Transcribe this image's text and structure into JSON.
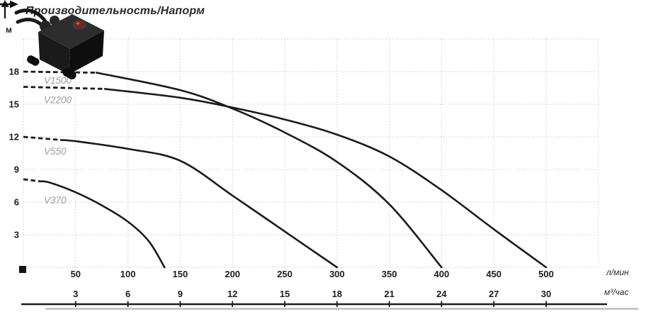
{
  "title": "Производительность/Напорм",
  "y_axis": {
    "unit_label": "м"
  },
  "x_axis_flow": {
    "unit_label": "л/мин"
  },
  "x_axis_volume": {
    "unit_label": "м³/час"
  },
  "colors": {
    "curve": "#1b1b1b",
    "grid": "#cbcbcb",
    "curve_label": "#9c9c9c",
    "axis_text": "#1d1d1d",
    "axis_shadow": "#bdbdbd",
    "pump_button_red": "#7e201a"
  },
  "chart_data": {
    "type": "line",
    "title": "Производительность/Напорм",
    "ylabel": "м",
    "xlabel_primary": "л/мин",
    "xlabel_secondary": "м³/час",
    "x_range_lmin": [
      0,
      550
    ],
    "y_range_m": [
      0,
      21
    ],
    "y_ticks_m": [
      3,
      6,
      9,
      12,
      15,
      18
    ],
    "x_ticks_lmin": [
      50,
      100,
      150,
      200,
      250,
      300,
      350,
      400,
      450,
      500
    ],
    "x_ticks_m3h": [
      3,
      6,
      9,
      12,
      15,
      18,
      21,
      24,
      27,
      30
    ],
    "grid": "dotted",
    "legend_position": "inline-labels",
    "series": [
      {
        "name": "V370",
        "dash_until": 16,
        "label_dy": 34,
        "points": [
          [
            0,
            8.1
          ],
          [
            25,
            7.8
          ],
          [
            50,
            6.9
          ],
          [
            75,
            5.7
          ],
          [
            100,
            4.2
          ],
          [
            120,
            2.4
          ],
          [
            135,
            0
          ]
        ]
      },
      {
        "name": "V550",
        "dash_until": 36,
        "label_dy": 25,
        "points": [
          [
            0,
            12
          ],
          [
            50,
            11.6
          ],
          [
            100,
            10.9
          ],
          [
            150,
            9.8
          ],
          [
            200,
            6.6
          ],
          [
            250,
            3.3
          ],
          [
            300,
            0
          ]
        ]
      },
      {
        "name": "V1500",
        "dash_until": 70,
        "label_dy": 17,
        "points": [
          [
            0,
            18
          ],
          [
            70,
            17.9
          ],
          [
            150,
            16.3
          ],
          [
            200,
            14.6
          ],
          [
            250,
            12.4
          ],
          [
            300,
            9.7
          ],
          [
            350,
            5.8
          ],
          [
            400,
            0
          ]
        ]
      },
      {
        "name": "V2200",
        "dash_until": 78,
        "label_dy": 23,
        "points": [
          [
            0,
            16.6
          ],
          [
            70,
            16.5
          ],
          [
            150,
            15.6
          ],
          [
            200,
            14.7
          ],
          [
            250,
            13.6
          ],
          [
            300,
            12.2
          ],
          [
            350,
            10.2
          ],
          [
            400,
            7.1
          ],
          [
            450,
            3.5
          ],
          [
            500,
            0
          ]
        ]
      }
    ]
  }
}
